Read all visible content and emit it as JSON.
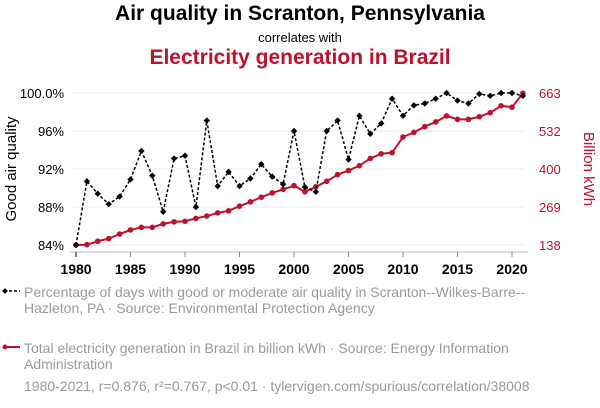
{
  "titles": {
    "main": "Air quality in Scranton, Pennsylvania",
    "connector": "correlates with",
    "secondary": "Electricity generation in Brazil"
  },
  "colors": {
    "series1": "#000000",
    "series2": "#c0102c",
    "grid": "#eeeeee",
    "text_muted": "#9a9a9a"
  },
  "legend": [
    {
      "label": "Percentage of days with good or moderate air quality in Scranton--Wilkes-Barre--Hazleton, PA · Source: Environmental Protection Agency"
    },
    {
      "label": "Total electricity generation in Brazil in billion kWh · Source: Energy Information Administration"
    }
  ],
  "footer": "1980-2021, r=0.876, r²=0.767, p<0.01 · tylervigen.com/spurious/correlation/38008",
  "chart_data": {
    "type": "line",
    "title": "Air quality in Scranton, Pennsylvania correlates with Electricity generation in Brazil",
    "xlabel": "",
    "ylabel_left": "Good air quality",
    "ylabel_right": "Billion kWh",
    "x": [
      1980,
      1981,
      1982,
      1983,
      1984,
      1985,
      1986,
      1987,
      1988,
      1989,
      1990,
      1991,
      1992,
      1993,
      1994,
      1995,
      1996,
      1997,
      1998,
      1999,
      2000,
      2001,
      2002,
      2003,
      2004,
      2005,
      2006,
      2007,
      2008,
      2009,
      2010,
      2011,
      2012,
      2013,
      2014,
      2015,
      2016,
      2017,
      2018,
      2019,
      2020,
      2021
    ],
    "x_ticks": [
      1980,
      1985,
      1990,
      1995,
      2000,
      2005,
      2010,
      2015,
      2020
    ],
    "xlim": [
      1980,
      2021
    ],
    "y_left_ticks": [
      "84%",
      "88%",
      "92%",
      "96%",
      "100.0%"
    ],
    "y_left_tick_values": [
      84,
      88,
      92,
      96,
      100
    ],
    "ylim_left": [
      84,
      100
    ],
    "y_right_ticks": [
      "138",
      "269",
      "400",
      "532",
      "663"
    ],
    "y_right_tick_values": [
      138,
      269,
      400,
      532,
      663
    ],
    "ylim_right": [
      138,
      663
    ],
    "grid": true,
    "legend_placement": "bottom",
    "series": [
      {
        "name": "Percentage of days with good or moderate air quality in Scranton--Wilkes-Barre--Hazleton, PA",
        "axis": "left",
        "style": "dashed-diamond",
        "values": [
          84.0,
          90.7,
          89.4,
          88.3,
          89.1,
          90.9,
          93.9,
          91.3,
          87.5,
          93.1,
          93.4,
          88.0,
          97.1,
          90.2,
          91.7,
          90.2,
          91.0,
          92.5,
          91.2,
          90.4,
          96.0,
          90.1,
          89.6,
          96.0,
          97.1,
          93.0,
          97.6,
          95.7,
          96.8,
          99.4,
          97.6,
          98.7,
          98.9,
          99.4,
          100.0,
          99.2,
          98.9,
          99.9,
          99.7,
          100.0,
          100.0,
          99.7
        ]
      },
      {
        "name": "Total electricity generation in Brazil in billion kWh",
        "axis": "right",
        "style": "solid-dot",
        "values": [
          138,
          139,
          151,
          160,
          176,
          190,
          199,
          199,
          211,
          218,
          220,
          230,
          238,
          249,
          256,
          272,
          287,
          303,
          318,
          330,
          343,
          322,
          339,
          358,
          381,
          395,
          412,
          437,
          453,
          457,
          511,
          527,
          547,
          563,
          584,
          572,
          572,
          581,
          595,
          619,
          614,
          662
        ]
      }
    ]
  }
}
